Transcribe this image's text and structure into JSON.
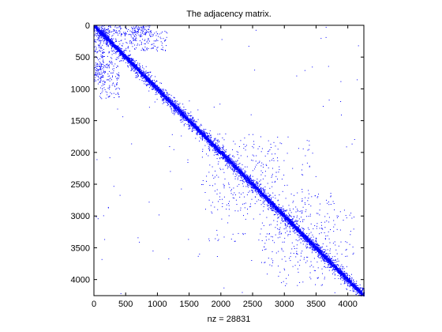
{
  "chart_data": {
    "type": "scatter",
    "subtype": "sparsity-pattern",
    "title": "The adjacency matrix.",
    "xlabel": "nz = 28831",
    "ylabel": "",
    "nz": 28831,
    "matrix_size": 4253,
    "xlim": [
      0,
      4253
    ],
    "ylim": [
      0,
      4253
    ],
    "y_reversed": true,
    "grid": false,
    "marker_color": "#0000ff",
    "xticks": [
      0,
      500,
      1000,
      1500,
      2000,
      2500,
      3000,
      3500,
      4000
    ],
    "yticks": [
      0,
      500,
      1000,
      1500,
      2000,
      2500,
      3000,
      3500,
      4000
    ],
    "xtick_labels": [
      "0",
      "500",
      "1000",
      "1500",
      "2000",
      "2500",
      "3000",
      "3500",
      "4000"
    ],
    "ytick_labels": [
      "0",
      "500",
      "1000",
      "1500",
      "2000",
      "2500",
      "3000",
      "3500",
      "4000"
    ],
    "pattern": {
      "diagonal_band": true,
      "clusters": [
        {
          "row_range": [
            0,
            150
          ],
          "col_range": [
            100,
            900
          ]
        },
        {
          "row_range": [
            400,
            1150
          ],
          "col_range": [
            80,
            400
          ]
        },
        {
          "row_range": [
            1800,
            2900
          ],
          "col_range": [
            1700,
            3400
          ]
        },
        {
          "row_range": [
            2900,
            3800
          ],
          "col_range": [
            2600,
            4100
          ]
        }
      ]
    }
  }
}
